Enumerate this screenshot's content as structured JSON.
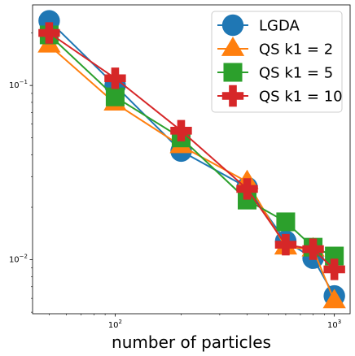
{
  "chart_data": {
    "type": "line",
    "title": "",
    "xlabel": "number of particles",
    "ylabel": "",
    "xscale": "log",
    "yscale": "log",
    "xlim": [
      42,
      1180
    ],
    "ylim": [
      0.0049,
      0.29
    ],
    "grid": false,
    "legend_position": "top-right",
    "x_ticks": [
      {
        "value": 100,
        "base": "10",
        "exp": "2"
      },
      {
        "value": 1000,
        "base": "10",
        "exp": "3"
      }
    ],
    "y_ticks": [
      {
        "value": 0.01,
        "base": "10",
        "exp": "−2"
      },
      {
        "value": 0.1,
        "base": "10",
        "exp": "−1"
      }
    ],
    "x": [
      50,
      100,
      200,
      400,
      600,
      800,
      1000
    ],
    "series": [
      {
        "name": "LGDA",
        "legend_label": "LGDA",
        "color": "#1f77b4",
        "marker": "circle",
        "values": [
          0.235,
          0.1,
          0.042,
          0.026,
          0.0128,
          0.0102,
          0.0062
        ]
      },
      {
        "name": "QS k1=2",
        "legend_label": "QS k1 = 2",
        "color": "#ff7f0e",
        "marker": "triangle",
        "values": [
          0.17,
          0.079,
          0.045,
          0.028,
          0.0118,
          0.0115,
          0.0058
        ]
      },
      {
        "name": "QS k1=5",
        "legend_label": "QS k1 = 5",
        "color": "#2ca02c",
        "marker": "square",
        "values": [
          0.195,
          0.086,
          0.05,
          0.022,
          0.0165,
          0.0118,
          0.0105
        ]
      },
      {
        "name": "QS k1=10",
        "legend_label": "QS k1 = 10",
        "color": "#d62728",
        "marker": "plus",
        "values": [
          0.2,
          0.11,
          0.055,
          0.0255,
          0.0122,
          0.0115,
          0.0088
        ]
      }
    ]
  }
}
